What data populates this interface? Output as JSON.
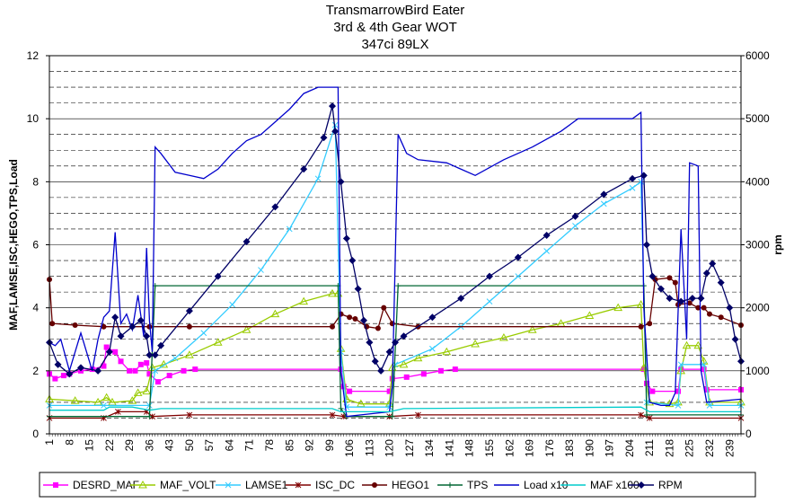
{
  "chart_data": {
    "type": "line",
    "title": [
      "TransmarrowBird Eater",
      "3rd & 4th Gear WOT",
      "347ci 89LX"
    ],
    "ylabel": "MAF,LAMSE,ISC,HEGO,TPS,Load",
    "y2label": "rpm",
    "ylim": [
      0,
      12
    ],
    "y2lim": [
      0,
      6000
    ],
    "yticks": [
      "0",
      "2",
      "4",
      "6",
      "8",
      "10",
      "12"
    ],
    "y2ticks": [
      "0",
      "1000",
      "2000",
      "3000",
      "4000",
      "5000",
      "6000"
    ],
    "xlim": [
      1,
      243
    ],
    "xticks": [
      "1",
      "8",
      "15",
      "22",
      "29",
      "36",
      "43",
      "50",
      "57",
      "64",
      "71",
      "78",
      "85",
      "92",
      "99",
      "106",
      "113",
      "120",
      "127",
      "134",
      "141",
      "148",
      "155",
      "162",
      "169",
      "176",
      "183",
      "190",
      "197",
      "204",
      "211",
      "218",
      "225",
      "232",
      "239"
    ],
    "grid": "major solid, minor dashed",
    "legend_position": "bottom",
    "series": [
      {
        "name": "DESRD_MAF",
        "color": "#FF00FF",
        "marker": "square",
        "axis": "left",
        "points": [
          [
            1,
            1.9
          ],
          [
            3,
            1.75
          ],
          [
            6,
            1.85
          ],
          [
            8,
            1.9
          ],
          [
            12,
            2.0
          ],
          [
            16,
            2.05
          ],
          [
            20,
            2.15
          ],
          [
            21,
            2.75
          ],
          [
            24,
            2.6
          ],
          [
            26,
            2.3
          ],
          [
            29,
            2.0
          ],
          [
            31,
            2.0
          ],
          [
            33,
            2.2
          ],
          [
            35,
            2.25
          ],
          [
            36,
            1.9
          ],
          [
            39,
            1.65
          ],
          [
            43,
            1.85
          ],
          [
            48,
            2.0
          ],
          [
            52,
            2.05
          ],
          [
            103,
            2.05
          ],
          [
            104,
            1.5
          ],
          [
            106,
            1.35
          ],
          [
            120,
            1.35
          ],
          [
            121,
            1.75
          ],
          [
            126,
            1.8
          ],
          [
            132,
            1.9
          ],
          [
            138,
            2.0
          ],
          [
            143,
            2.05
          ],
          [
            209,
            2.05
          ],
          [
            210,
            1.6
          ],
          [
            212,
            1.35
          ],
          [
            221,
            1.35
          ],
          [
            222,
            2.05
          ],
          [
            230,
            2.05
          ],
          [
            231,
            1.4
          ],
          [
            243,
            1.4
          ]
        ]
      },
      {
        "name": "MAF_VOLT",
        "color": "#99CC00",
        "marker": "triangle",
        "axis": "left",
        "points": [
          [
            1,
            1.1
          ],
          [
            10,
            1.05
          ],
          [
            18,
            1.0
          ],
          [
            21,
            1.15
          ],
          [
            23,
            1.0
          ],
          [
            30,
            1.05
          ],
          [
            32,
            1.3
          ],
          [
            35,
            1.35
          ],
          [
            37,
            2.1
          ],
          [
            41,
            2.2
          ],
          [
            50,
            2.5
          ],
          [
            60,
            2.9
          ],
          [
            70,
            3.3
          ],
          [
            80,
            3.8
          ],
          [
            90,
            4.2
          ],
          [
            100,
            4.45
          ],
          [
            102,
            4.45
          ],
          [
            103,
            2.7
          ],
          [
            105,
            1.1
          ],
          [
            110,
            0.95
          ],
          [
            120,
            0.95
          ],
          [
            121,
            2.1
          ],
          [
            125,
            2.2
          ],
          [
            130,
            2.4
          ],
          [
            140,
            2.6
          ],
          [
            150,
            2.85
          ],
          [
            160,
            3.05
          ],
          [
            170,
            3.3
          ],
          [
            180,
            3.5
          ],
          [
            190,
            3.75
          ],
          [
            200,
            4.0
          ],
          [
            208,
            4.1
          ],
          [
            209,
            2.1
          ],
          [
            211,
            1.0
          ],
          [
            218,
            0.95
          ],
          [
            221,
            1.0
          ],
          [
            222,
            2.0
          ],
          [
            224,
            2.8
          ],
          [
            228,
            2.8
          ],
          [
            230,
            2.3
          ],
          [
            232,
            1.0
          ],
          [
            243,
            1.0
          ]
        ]
      },
      {
        "name": "LAMSE1",
        "color": "#33CCFF",
        "marker": "x",
        "axis": "left",
        "points": [
          [
            1,
            0.9
          ],
          [
            20,
            0.9
          ],
          [
            36,
            0.9
          ],
          [
            38,
            2.0
          ],
          [
            45,
            2.4
          ],
          [
            55,
            3.2
          ],
          [
            65,
            4.1
          ],
          [
            75,
            5.2
          ],
          [
            85,
            6.5
          ],
          [
            95,
            8.1
          ],
          [
            101,
            9.8
          ],
          [
            103,
            2.6
          ],
          [
            105,
            0.85
          ],
          [
            120,
            0.85
          ],
          [
            122,
            2.2
          ],
          [
            135,
            2.7
          ],
          [
            145,
            3.4
          ],
          [
            155,
            4.2
          ],
          [
            165,
            5.0
          ],
          [
            175,
            5.8
          ],
          [
            185,
            6.6
          ],
          [
            195,
            7.3
          ],
          [
            205,
            7.8
          ],
          [
            208,
            8.0
          ],
          [
            210,
            1.0
          ],
          [
            221,
            0.9
          ],
          [
            222,
            2.2
          ],
          [
            230,
            2.2
          ],
          [
            232,
            0.9
          ],
          [
            243,
            0.9
          ]
        ]
      },
      {
        "name": "ISC_DC",
        "color": "#800000",
        "marker": "star",
        "axis": "left",
        "points": [
          [
            1,
            0.5
          ],
          [
            20,
            0.5
          ],
          [
            25,
            0.7
          ],
          [
            35,
            0.7
          ],
          [
            37,
            0.55
          ],
          [
            50,
            0.6
          ],
          [
            100,
            0.6
          ],
          [
            104,
            0.55
          ],
          [
            120,
            0.55
          ],
          [
            130,
            0.6
          ],
          [
            208,
            0.6
          ],
          [
            211,
            0.5
          ],
          [
            243,
            0.5
          ]
        ]
      },
      {
        "name": "HEGO1",
        "color": "#660000",
        "marker": "circle",
        "axis": "left",
        "points": [
          [
            1,
            4.9
          ],
          [
            2,
            3.5
          ],
          [
            10,
            3.45
          ],
          [
            20,
            3.4
          ],
          [
            36,
            3.4
          ],
          [
            50,
            3.4
          ],
          [
            100,
            3.4
          ],
          [
            103,
            3.8
          ],
          [
            106,
            3.7
          ],
          [
            108,
            3.65
          ],
          [
            112,
            3.4
          ],
          [
            116,
            3.35
          ],
          [
            118,
            4.0
          ],
          [
            121,
            3.5
          ],
          [
            130,
            3.4
          ],
          [
            208,
            3.4
          ],
          [
            211,
            3.5
          ],
          [
            213,
            4.9
          ],
          [
            218,
            4.95
          ],
          [
            220,
            4.8
          ],
          [
            221,
            4.1
          ],
          [
            225,
            4.15
          ],
          [
            228,
            4.0
          ],
          [
            230,
            4.0
          ],
          [
            232,
            3.8
          ],
          [
            236,
            3.7
          ],
          [
            243,
            3.45
          ]
        ]
      },
      {
        "name": "TPS",
        "color": "#006633",
        "marker": "plus",
        "axis": "left",
        "points": [
          [
            1,
            0.55
          ],
          [
            36,
            0.55
          ],
          [
            38,
            4.7
          ],
          [
            102,
            4.7
          ],
          [
            103,
            0.8
          ],
          [
            105,
            0.55
          ],
          [
            121,
            0.55
          ],
          [
            123,
            4.7
          ],
          [
            209,
            4.7
          ],
          [
            210,
            0.6
          ],
          [
            243,
            0.6
          ]
        ]
      },
      {
        "name": "Load x10",
        "color": "#0000CC",
        "marker": "none",
        "axis": "left",
        "points": [
          [
            1,
            2.9
          ],
          [
            3,
            2.8
          ],
          [
            5,
            3.0
          ],
          [
            8,
            2.0
          ],
          [
            12,
            3.2
          ],
          [
            16,
            2.0
          ],
          [
            18,
            3.0
          ],
          [
            20,
            3.7
          ],
          [
            22,
            3.9
          ],
          [
            24,
            6.4
          ],
          [
            26,
            3.5
          ],
          [
            28,
            3.8
          ],
          [
            30,
            3.3
          ],
          [
            32,
            4.4
          ],
          [
            34,
            3.1
          ],
          [
            35,
            5.9
          ],
          [
            36,
            3.6
          ],
          [
            37,
            2.6
          ],
          [
            38,
            9.1
          ],
          [
            40,
            8.9
          ],
          [
            45,
            8.3
          ],
          [
            50,
            8.2
          ],
          [
            55,
            8.1
          ],
          [
            60,
            8.4
          ],
          [
            65,
            8.9
          ],
          [
            70,
            9.3
          ],
          [
            75,
            9.5
          ],
          [
            80,
            9.9
          ],
          [
            85,
            10.3
          ],
          [
            90,
            10.8
          ],
          [
            95,
            11.0
          ],
          [
            98,
            11.0
          ],
          [
            102,
            11.0
          ],
          [
            103,
            2.0
          ],
          [
            105,
            0.55
          ],
          [
            110,
            0.6
          ],
          [
            120,
            0.7
          ],
          [
            121,
            1.5
          ],
          [
            123,
            9.5
          ],
          [
            126,
            8.9
          ],
          [
            130,
            8.7
          ],
          [
            140,
            8.6
          ],
          [
            150,
            8.2
          ],
          [
            160,
            8.7
          ],
          [
            170,
            9.1
          ],
          [
            180,
            9.6
          ],
          [
            186,
            10.0
          ],
          [
            195,
            10.0
          ],
          [
            205,
            10.0
          ],
          [
            208,
            10.2
          ],
          [
            209,
            4.0
          ],
          [
            211,
            1.0
          ],
          [
            215,
            0.9
          ],
          [
            218,
            0.9
          ],
          [
            220,
            1.3
          ],
          [
            222,
            6.5
          ],
          [
            224,
            3.0
          ],
          [
            225,
            8.6
          ],
          [
            228,
            8.5
          ],
          [
            229,
            2.0
          ],
          [
            231,
            1.0
          ],
          [
            243,
            1.1
          ]
        ]
      },
      {
        "name": "MAF x100",
        "color": "#00CCCC",
        "marker": "none",
        "axis": "left",
        "points": [
          [
            1,
            0.75
          ],
          [
            10,
            0.75
          ],
          [
            20,
            0.75
          ],
          [
            22,
            0.85
          ],
          [
            30,
            0.85
          ],
          [
            36,
            0.75
          ],
          [
            40,
            0.8
          ],
          [
            100,
            0.8
          ],
          [
            103,
            0.7
          ],
          [
            120,
            0.7
          ],
          [
            125,
            0.8
          ],
          [
            208,
            0.85
          ],
          [
            211,
            0.7
          ],
          [
            243,
            0.7
          ]
        ]
      },
      {
        "name": "RPM",
        "color": "#000066",
        "marker": "diamond",
        "axis": "right",
        "points": [
          [
            1,
            1450
          ],
          [
            4,
            1100
          ],
          [
            8,
            950
          ],
          [
            12,
            1050
          ],
          [
            18,
            1000
          ],
          [
            22,
            1300
          ],
          [
            24,
            1850
          ],
          [
            26,
            1550
          ],
          [
            30,
            1700
          ],
          [
            33,
            1800
          ],
          [
            35,
            1550
          ],
          [
            36,
            1250
          ],
          [
            38,
            1250
          ],
          [
            40,
            1400
          ],
          [
            50,
            1950
          ],
          [
            60,
            2500
          ],
          [
            70,
            3050
          ],
          [
            80,
            3600
          ],
          [
            90,
            4200
          ],
          [
            97,
            4700
          ],
          [
            100,
            5200
          ],
          [
            101,
            4800
          ],
          [
            103,
            4000
          ],
          [
            105,
            3100
          ],
          [
            107,
            2750
          ],
          [
            109,
            2300
          ],
          [
            111,
            1800
          ],
          [
            113,
            1450
          ],
          [
            115,
            1150
          ],
          [
            117,
            1000
          ],
          [
            120,
            1300
          ],
          [
            122,
            1450
          ],
          [
            125,
            1550
          ],
          [
            135,
            1850
          ],
          [
            145,
            2150
          ],
          [
            155,
            2500
          ],
          [
            165,
            2800
          ],
          [
            175,
            3150
          ],
          [
            185,
            3450
          ],
          [
            195,
            3800
          ],
          [
            205,
            4050
          ],
          [
            209,
            4100
          ],
          [
            210,
            3000
          ],
          [
            212,
            2500
          ],
          [
            215,
            2300
          ],
          [
            218,
            2150
          ],
          [
            222,
            2100
          ],
          [
            226,
            2150
          ],
          [
            229,
            2150
          ],
          [
            231,
            2550
          ],
          [
            233,
            2700
          ],
          [
            236,
            2400
          ],
          [
            239,
            2000
          ],
          [
            241,
            1500
          ],
          [
            243,
            1150
          ]
        ]
      }
    ]
  }
}
